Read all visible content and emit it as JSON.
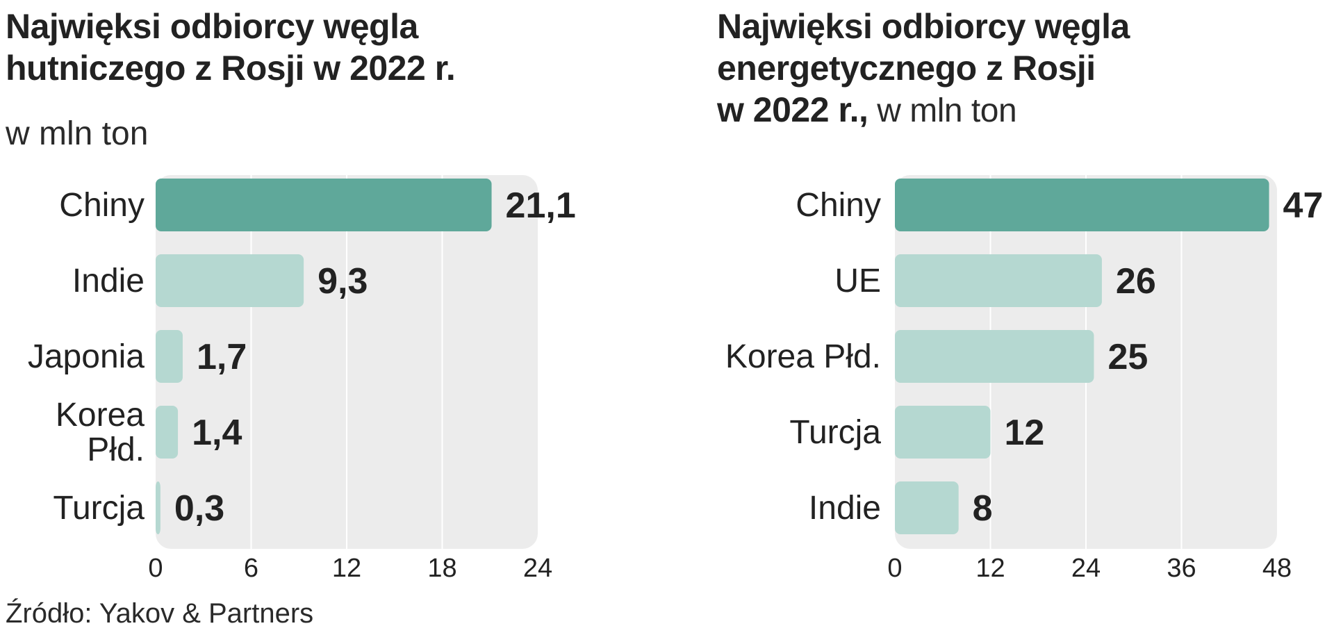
{
  "charts": [
    {
      "id": "left",
      "title_lines": [
        "Najwięksi odbiorcy węgla",
        "hutniczego z Rosji w 2022 r."
      ],
      "unit": "w mln ton"
    },
    {
      "id": "right",
      "title_lines": [
        "Najwięksi odbiorcy węgla",
        "energetycznego z Rosji"
      ],
      "title_last_bold": "w 2022 r.,",
      "unit": " w mln ton"
    }
  ],
  "source": "Źródło: Yakov & Partners",
  "colors": {
    "top_bar": "#5fa89a",
    "bar": "#b5d8d1",
    "panel": "#ececec",
    "grid": "#ffffff",
    "text": "#222222"
  },
  "chart_data": [
    {
      "type": "bar",
      "orientation": "horizontal",
      "title": "Najwięksi odbiorcy węgla hutniczego z Rosji w 2022 r.",
      "subtitle": "w mln ton",
      "categories": [
        "Chiny",
        "Indie",
        "Japonia",
        "Korea Płd.",
        "Turcja"
      ],
      "category_lines": [
        [
          "Chiny"
        ],
        [
          "Indie"
        ],
        [
          "Japonia"
        ],
        [
          "Korea",
          "Płd."
        ],
        [
          "Turcja"
        ]
      ],
      "values": [
        21.1,
        9.3,
        1.7,
        1.4,
        0.3
      ],
      "value_labels": [
        "21,1",
        "9,3",
        "1,7",
        "1,4",
        "0,3"
      ],
      "xlim": [
        0,
        24
      ],
      "xticks": [
        0,
        6,
        12,
        18,
        24
      ],
      "xtick_labels": [
        "0",
        "6",
        "12",
        "18",
        "24"
      ],
      "highlight_index": 0,
      "grid": true
    },
    {
      "type": "bar",
      "orientation": "horizontal",
      "title": "Najwięksi odbiorcy węgla energetycznego z Rosji w 2022 r.",
      "subtitle": "w mln ton",
      "categories": [
        "Chiny",
        "UE",
        "Korea Płd.",
        "Turcja",
        "Indie"
      ],
      "category_lines": [
        [
          "Chiny"
        ],
        [
          "UE"
        ],
        [
          "Korea Płd."
        ],
        [
          "Turcja"
        ],
        [
          "Indie"
        ]
      ],
      "values": [
        47,
        26,
        25,
        12,
        8
      ],
      "value_labels": [
        "47",
        "26",
        "25",
        "12",
        "8"
      ],
      "xlim": [
        0,
        48
      ],
      "xticks": [
        0,
        12,
        24,
        36,
        48
      ],
      "xtick_labels": [
        "0",
        "12",
        "24",
        "36",
        "48"
      ],
      "highlight_index": 0,
      "grid": true
    }
  ]
}
